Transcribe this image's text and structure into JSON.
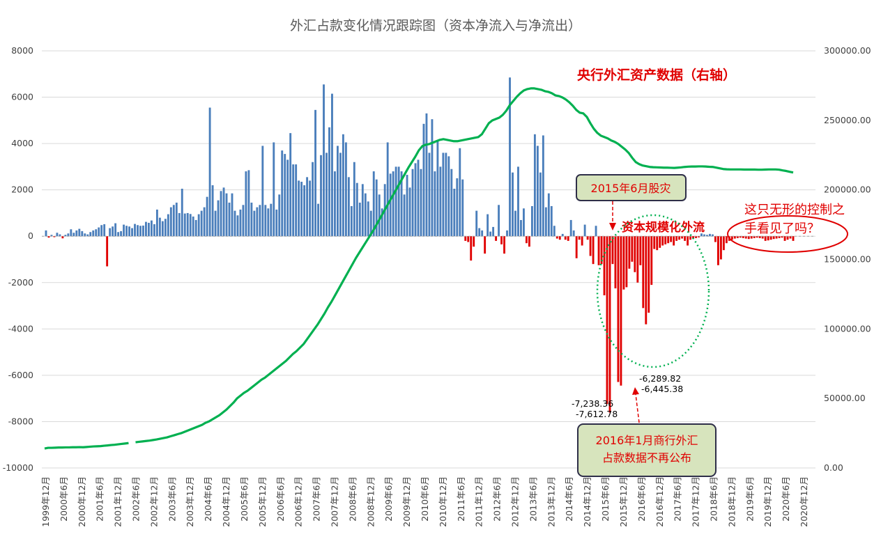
{
  "chart_data": {
    "type": "bar+line",
    "title": "外汇占款变化情况跟踪图（资本净流入与净流出）",
    "left_axis": {
      "ylim": [
        -10000,
        8000
      ],
      "ticks": [
        "8000",
        "6000",
        "4000",
        "2000",
        "0",
        "-2000",
        "-4000",
        "-6000",
        "-8000",
        "-10000"
      ]
    },
    "right_axis": {
      "ylim": [
        0,
        300000
      ],
      "ticks": [
        "300000.00",
        "250000.00",
        "200000.00",
        "150000.00",
        "100000.00",
        "50000.00",
        "0.00"
      ]
    },
    "x_ticks": [
      "1999年12月",
      "2000年6月",
      "2000年12月",
      "2001年6月",
      "2001年12月",
      "2002年6月",
      "2002年12月",
      "2003年6月",
      "2003年12月",
      "2004年6月",
      "2004年12月",
      "2005年6月",
      "2005年12月",
      "2006年6月",
      "2006年12月",
      "2007年6月",
      "2007年12月",
      "2008年6月",
      "2008年12月",
      "2009年6月",
      "2009年12月",
      "2010年6月",
      "2010年12月",
      "2011年6月",
      "2011年12月",
      "2012年6月",
      "2012年12月",
      "2013年6月",
      "2013年12月",
      "2014年6月",
      "2014年12月",
      "2015年6月",
      "2015年12月",
      "2016年6月",
      "2016年12月",
      "2017年6月",
      "2017年12月",
      "2018年6月",
      "2018年12月",
      "2019年6月",
      "2019年12月",
      "2020年6月",
      "2020年12月"
    ],
    "grid": true,
    "bar_series": {
      "colors": {
        "positive": "#4a7ebb",
        "negative": "#e00000"
      },
      "values": [
        250,
        -60,
        60,
        -40,
        150,
        80,
        -90,
        60,
        120,
        300,
        150,
        250,
        320,
        220,
        120,
        80,
        180,
        250,
        300,
        380,
        480,
        520,
        -1300,
        350,
        420,
        560,
        180,
        220,
        500,
        450,
        420,
        350,
        530,
        480,
        450,
        460,
        620,
        580,
        680,
        520,
        1150,
        800,
        650,
        750,
        950,
        1250,
        1350,
        1450,
        1000,
        2050,
        980,
        1000,
        960,
        850,
        700,
        950,
        1100,
        1250,
        1700,
        5550,
        2200,
        1100,
        1550,
        1950,
        2100,
        1850,
        1450,
        1850,
        1100,
        900,
        1150,
        1350,
        2800,
        2850,
        1450,
        1100,
        1250,
        1350,
        3900,
        1350,
        1200,
        1400,
        4050,
        1150,
        1800,
        3700,
        3550,
        3300,
        4450,
        3100,
        3100,
        2400,
        2350,
        2200,
        2550,
        2400,
        3200,
        5450,
        1400,
        3500,
        6550,
        3600,
        4700,
        6150,
        2800,
        3900,
        3600,
        4400,
        4050,
        2550,
        1300,
        3200,
        2300,
        1450,
        2250,
        1850,
        1500,
        1100,
        2800,
        2450,
        1800,
        1200,
        2250,
        4050,
        2700,
        2800,
        3000,
        3000,
        2800,
        1800,
        2650,
        2100,
        2900,
        3150,
        3300,
        2900,
        4850,
        5300,
        3600,
        5050,
        2800,
        4150,
        3000,
        3600,
        3600,
        3450,
        2900,
        2050,
        2500,
        3800,
        2450,
        -200,
        -250,
        -1050,
        -450,
        1100,
        350,
        250,
        -750,
        950,
        200,
        400,
        -200,
        1350,
        -350,
        -750,
        250,
        6850,
        2750,
        1100,
        3000,
        700,
        1200,
        -300,
        -450,
        1300,
        4400,
        3900,
        2750,
        4350,
        1250,
        1850,
        1300,
        450,
        -100,
        -150,
        100,
        -150,
        -200,
        700,
        250,
        -950,
        -150,
        -400,
        500,
        -150,
        -850,
        -1200,
        450,
        -1250,
        -1200,
        -2550,
        -7238.36,
        -7612.78,
        -1200,
        -2250,
        -6289.82,
        -6445.38,
        -2300,
        -2200,
        -1400,
        -1100,
        -1550,
        -2000,
        -1250,
        -3100,
        -3800,
        -3300,
        -2100,
        -550,
        -600,
        -500,
        -400,
        -350,
        -300,
        -250,
        -400,
        -200,
        -150,
        -100,
        -200,
        -400,
        -150,
        -100,
        -80,
        -50,
        120,
        80,
        60,
        100,
        80,
        -250,
        -1250,
        -1000,
        -600,
        -300,
        -200,
        -150,
        -100,
        -80,
        -60,
        -80,
        -100,
        -120,
        -100,
        -80,
        -60,
        -80,
        -100,
        -200,
        -180,
        -150,
        -120,
        -100,
        -80,
        -60,
        -200,
        -150,
        -100,
        -200
      ]
    },
    "line_series": {
      "color": "#00b050",
      "gap_after_index": 24,
      "values": [
        14000,
        14500,
        14500,
        14600,
        14700,
        14700,
        14800,
        14800,
        14900,
        14900,
        15000,
        14900,
        15100,
        15300,
        15500,
        15600,
        15700,
        16000,
        16200,
        16500,
        16700,
        17000,
        17300,
        17600,
        17900,
        18200,
        18500,
        18800,
        19100,
        19400,
        19700,
        20100,
        20500,
        21000,
        21500,
        22000,
        22800,
        23500,
        24300,
        25000,
        26000,
        27000,
        28000,
        29000,
        30000,
        31000,
        32500,
        33500,
        35000,
        36500,
        38000,
        40000,
        42000,
        44500,
        47000,
        50000,
        52000,
        54000,
        55500,
        57500,
        59500,
        61500,
        63500,
        65000,
        67000,
        69000,
        71000,
        73000,
        75000,
        77000,
        79500,
        82000,
        84000,
        86500,
        89000,
        92500,
        96000,
        99500,
        103000,
        107000,
        111000,
        115500,
        119500,
        124000,
        128500,
        133000,
        137500,
        142000,
        146500,
        151000,
        155000,
        159000,
        163000,
        167000,
        171000,
        175500,
        180000,
        184500,
        189000,
        193500,
        198000,
        202500,
        207000,
        211500,
        216000,
        220000,
        224000,
        228500,
        231500,
        232500,
        233000,
        234000,
        235000,
        236000,
        236500,
        236000,
        235500,
        235000,
        235000,
        235500,
        236000,
        236500,
        237000,
        237500,
        238000,
        240000,
        244000,
        248000,
        250000,
        251000,
        252000,
        254000,
        257000,
        261000,
        264000,
        267000,
        269500,
        271500,
        272500,
        273000,
        273000,
        272500,
        272000,
        271000,
        270500,
        269500,
        268000,
        267500,
        266500,
        265000,
        263000,
        260500,
        257500,
        255500,
        255000,
        252500,
        248000,
        244000,
        241000,
        239000,
        238000,
        237000,
        235500,
        234500,
        233000,
        231000,
        229000,
        226500,
        223000,
        220000,
        218500,
        217500,
        217000,
        216500,
        216300,
        216200,
        216100,
        216000,
        216000,
        215900,
        215800,
        216000,
        216200,
        216500,
        216700,
        216800,
        216800,
        216900,
        216900,
        216800,
        216600,
        216500,
        216000,
        215500,
        215000,
        214800,
        214700,
        214700,
        214700,
        214700,
        214600,
        214600,
        214600,
        214600,
        214500,
        214500,
        214600,
        214700,
        214700,
        214700,
        214500,
        214000,
        213600,
        213000,
        212500
      ]
    },
    "annotations": {
      "line_label": "央行外汇资产数据（右轴）",
      "crash_box": "2015年6月股灾",
      "outflow_label": "资本规模化外流",
      "question_line1": "这只无形的控制之",
      "question_line2": "手看见了吗？",
      "stop_box_line1": "2016年1月商行外汇",
      "stop_box_line2": "占款数据不再公布",
      "value_a": "-7,238.36",
      "value_b": "-7,612.78",
      "value_c": "-6,289.82",
      "value_d": "-6,445.38"
    }
  }
}
